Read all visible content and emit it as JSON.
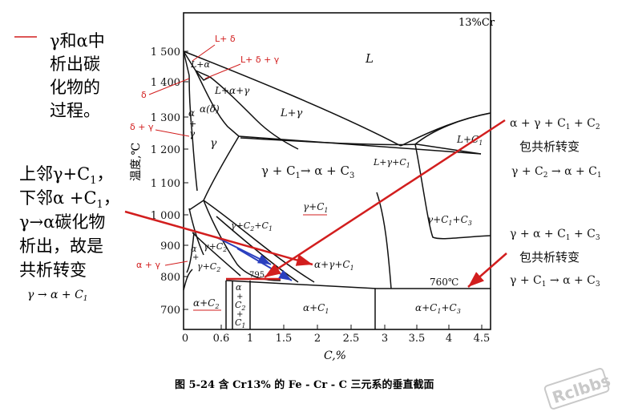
{
  "colors": {
    "annotation_red": "#d21e1e",
    "arrow_blue": "#2a3fbf",
    "ink": "#111111",
    "watermark": "#c9c9c9"
  },
  "left_notes": {
    "note1": {
      "l1": "γ和α中",
      "l2": "析出碳",
      "l3": "化物的",
      "l4": "过程。"
    },
    "note2": {
      "l1": "上邻γ+C",
      "l1_sub": "1",
      "l1_tail": "，",
      "l2": "下邻α +C",
      "l2_sub": "1",
      "l2_tail": "，",
      "l3": "γ→α碳化物",
      "l4": "析出，故是",
      "l5": "共析转变",
      "eq_main": "γ → α + C",
      "eq_sub": "1"
    }
  },
  "right_notes": {
    "upper": {
      "reaction": "α + γ + C",
      "reaction_sub1": "1",
      "reaction_mid": " + C",
      "reaction_sub2": "2",
      "type": "包共析转变",
      "eq": "γ + C",
      "eq_sub1": "2",
      "eq_tail": " → α + C",
      "eq_sub2": "1"
    },
    "lower": {
      "reaction": "γ + α + C",
      "reaction_sub1": "1",
      "reaction_mid": " + C",
      "reaction_sub2": "3",
      "type": "包共析转变",
      "eq": "γ + C",
      "eq_sub1": "1",
      "eq_tail": " → α + C",
      "eq_sub2": "3"
    }
  },
  "diagram": {
    "composition": "13%Cr",
    "y_axis_label": "温度,℃",
    "x_axis_label": "C,%",
    "y_ticks": [
      "1 500",
      "1 400",
      "1 300",
      "1 200",
      "1 100",
      "1 000",
      "900",
      "800",
      "700"
    ],
    "x_ticks": [
      "0",
      "0.6",
      "1",
      "1.5",
      "2",
      "2.5",
      "3",
      "3.5",
      "4",
      "4.5"
    ],
    "temp_760": "760℃",
    "temp_795": "795",
    "caption": "图 5-24   含 Cr13% 的 Fe - Cr - C 三元系的垂直截面",
    "phase_labels": {
      "L": "L",
      "L_gamma": "L+γ",
      "L_alpha_gamma": "L+α+γ",
      "L_alpha": "L+α",
      "alpha_delta": "α(δ)",
      "alpha_gamma_left": "α\n+\nγ",
      "gamma": "γ",
      "L_C1": "L+C1",
      "L_gamma_C1": "L+γ+C1",
      "gamma_C1_to_alpha_C3": "γ + C1→ α + C3",
      "gamma_C1": "γ+C1",
      "gamma_C2_C1": "γ+C2+C1",
      "gamma_C2": "γ+C2",
      "alpha_gamma_C2": "α\n+\nγ+C2",
      "alpha_gamma_C1": "α+γ+C1",
      "gamma_C1_C3": "γ+C1+C3",
      "alpha_C2": "α+C2",
      "alpha_C2_C1": "α\n+\nC2\n+\nC1",
      "alpha_C1": "α+C1",
      "alpha_C1_C3": "α+C1+C3"
    },
    "red_labels": {
      "L_delta": "L+ δ",
      "L_delta_gamma": "L+ δ + γ",
      "delta": "δ",
      "delta_gamma": "δ + γ",
      "alpha_gamma": "α + γ"
    }
  },
  "watermark": "Rclbbs"
}
